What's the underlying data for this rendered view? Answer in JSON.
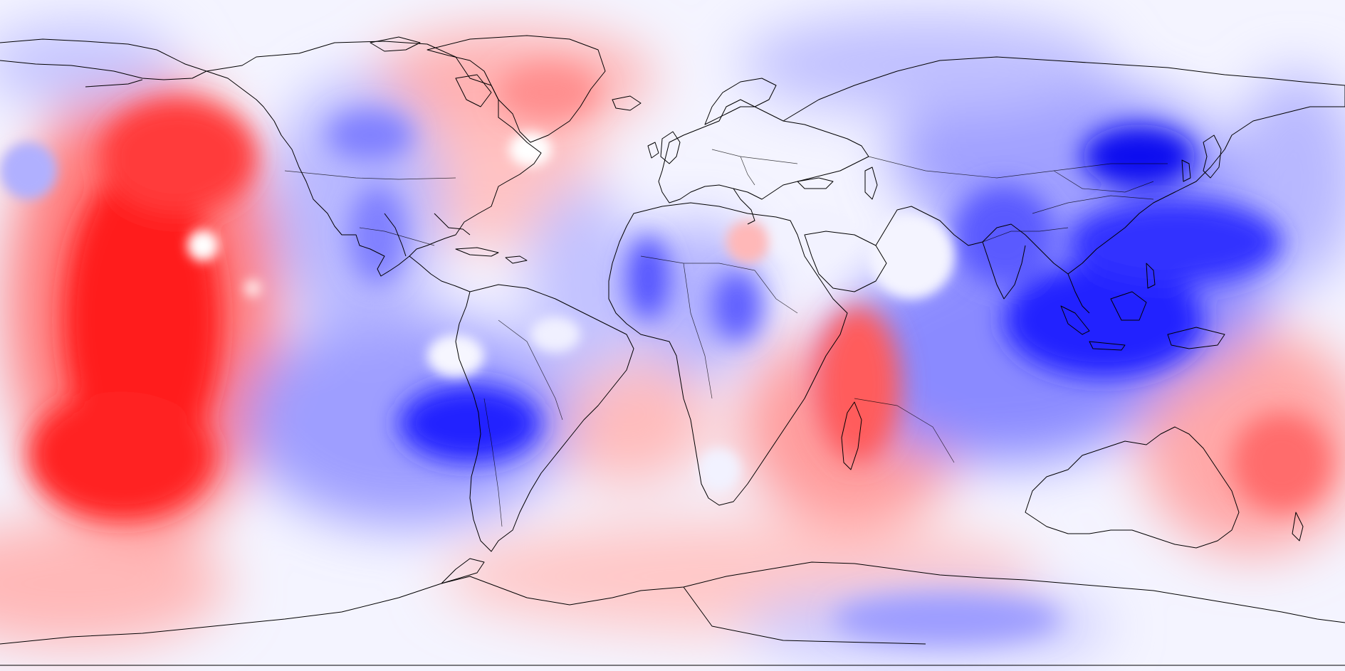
{
  "map": {
    "projection": "plate-carree",
    "field_type": "diverging-anomaly",
    "colormap": {
      "positive": "#ff0000",
      "neutral": "#ffffff",
      "negative": "#0000ff"
    },
    "coastline_color": "#000000",
    "labels": [],
    "anomaly_features": [
      {
        "name": "central-pacific-warm",
        "sign": "positive",
        "strength": 1.0
      },
      {
        "name": "south-pacific-warm",
        "sign": "positive",
        "strength": 0.95
      },
      {
        "name": "west-pacific-cold",
        "sign": "negative",
        "strength": 1.0
      },
      {
        "name": "east-asia-cold",
        "sign": "negative",
        "strength": 0.9
      },
      {
        "name": "south-indian-ocean-cold",
        "sign": "negative",
        "strength": 1.0
      },
      {
        "name": "patagonia-cold",
        "sign": "negative",
        "strength": 1.0
      },
      {
        "name": "greenland-warm",
        "sign": "positive",
        "strength": 0.55
      },
      {
        "name": "eastern-us-warm",
        "sign": "positive",
        "strength": 0.55
      },
      {
        "name": "madagascar-warm",
        "sign": "positive",
        "strength": 0.75
      },
      {
        "name": "antarctic-peninsula-warm",
        "sign": "positive",
        "strength": 0.4
      },
      {
        "name": "east-antarctic-cold",
        "sign": "negative",
        "strength": 0.4
      },
      {
        "name": "north-america-west-cold",
        "sign": "negative",
        "strength": 0.6
      },
      {
        "name": "siberia-cold",
        "sign": "negative",
        "strength": 0.5
      },
      {
        "name": "australia-east-warm",
        "sign": "positive",
        "strength": 0.7
      }
    ]
  }
}
